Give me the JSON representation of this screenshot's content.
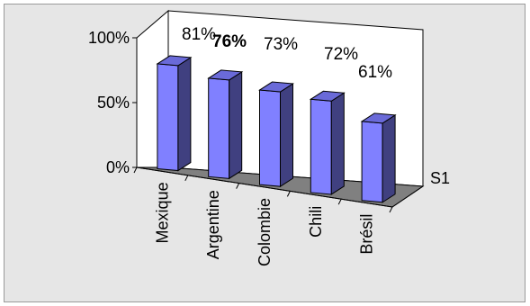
{
  "chart_data": {
    "type": "bar",
    "style": "3d-column",
    "categories": [
      "Mexique",
      "Argentine",
      "Colombie",
      "Chili",
      "Brésil"
    ],
    "series": [
      {
        "name": "S1",
        "values": [
          81,
          76,
          73,
          72,
          61
        ],
        "color": "#8080ff"
      }
    ],
    "data_labels": [
      "81%",
      "76%",
      "73%",
      "72%",
      "61%"
    ],
    "y_ticks": [
      "0%",
      "50%",
      "100%"
    ],
    "ylim": [
      0,
      100
    ],
    "depth_axis_label": "S1",
    "legend": "none",
    "grid": false,
    "colors": {
      "background": "#e6e6e6",
      "bar_front": "#8080ff",
      "bar_side": "#404080",
      "bar_top": "#6a6ad8",
      "floor": "#808080",
      "walls": "#ffffff"
    }
  }
}
